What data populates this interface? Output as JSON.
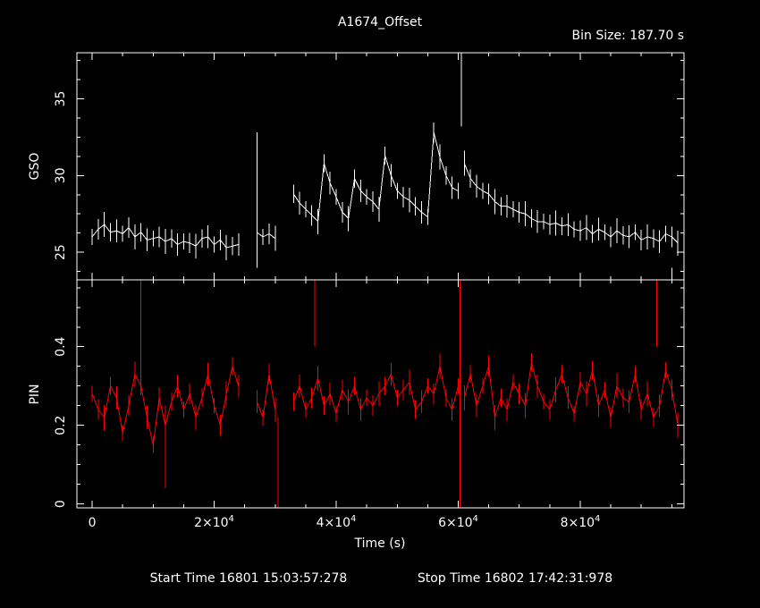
{
  "colors": {
    "background": "#000000",
    "foreground": "#ffffff",
    "gso": "#ffffff",
    "pin": "#ff0000"
  },
  "chart_data": [
    {
      "type": "line",
      "panel": "gso",
      "title": "A1674_Offset",
      "subtitle": "Bin Size:  187.70 s",
      "ylabel": "GSO",
      "xlim": [
        -2500,
        97000
      ],
      "ylim": [
        23.2,
        38
      ],
      "y_ticks": [
        25,
        30,
        35
      ],
      "x_ticks": [
        0,
        20000,
        40000,
        60000,
        80000
      ],
      "grid": false,
      "series": [
        {
          "style": "line-with-error-bars",
          "color": "#ffffff",
          "segments": [
            {
              "x": [
                0,
                1000,
                2000,
                3000,
                4000,
                5000,
                6000,
                7000,
                8000,
                9000,
                10000,
                11000,
                12000,
                13000,
                14000,
                15000,
                16000,
                17000,
                18000,
                19000,
                20000,
                21000,
                22000,
                23000,
                24000
              ],
              "y": [
                26,
                26.5,
                26.8,
                26.3,
                26.4,
                26.2,
                26.6,
                26.0,
                26.3,
                25.8,
                25.9,
                26.0,
                25.7,
                25.9,
                25.5,
                25.7,
                25.6,
                25.4,
                25.9,
                26.0,
                25.5,
                25.8,
                25.3,
                25.4,
                25.5
              ]
            },
            {
              "x": [
                27000,
                28000,
                29000,
                30000
              ],
              "y": [
                26.3,
                26.0,
                26.2,
                25.9
              ]
            },
            {
              "x": [
                33000,
                34000,
                35000,
                36000,
                37000,
                38000,
                39000,
                40000,
                41000,
                42000,
                43000,
                44000,
                45000,
                46000,
                47000,
                48000,
                49000,
                50000,
                51000,
                52000,
                53000,
                54000,
                55000,
                56000,
                57000,
                58000,
                59000,
                60000
              ],
              "y": [
                28.8,
                28.2,
                27.8,
                27.4,
                27.0,
                30.8,
                29.5,
                28.6,
                27.6,
                27.2,
                29.8,
                29.0,
                28.6,
                28.3,
                27.8,
                31.3,
                30.0,
                29.0,
                28.6,
                28.4,
                28.0,
                27.6,
                27.3,
                32.8,
                31.2,
                30.0,
                29.2,
                29.0
              ]
            },
            {
              "x": [
                61000,
                62000,
                63000,
                64000,
                65000,
                66000,
                67000,
                68000,
                69000,
                70000,
                71000,
                72000,
                73000,
                74000,
                75000,
                76000,
                77000,
                78000,
                79000,
                80000,
                81000,
                82000,
                83000,
                84000,
                85000,
                86000,
                87000,
                88000,
                89000,
                90000,
                91000,
                92000,
                93000,
                94000,
                95000,
                96000
              ],
              "y": [
                30.8,
                29.8,
                29.3,
                29.0,
                28.8,
                28.3,
                28.0,
                28.0,
                27.8,
                27.6,
                27.5,
                27.2,
                27.0,
                27.0,
                26.8,
                26.9,
                26.7,
                26.8,
                26.5,
                26.4,
                26.6,
                26.2,
                26.5,
                26.3,
                26.0,
                26.4,
                26.1,
                26.0,
                26.3,
                25.8,
                26.0,
                25.9,
                25.7,
                26.2,
                26.0,
                25.6
              ]
            }
          ],
          "spikes": [
            {
              "x": 27000,
              "ylo": 24.0,
              "yhi": 32.8
            },
            {
              "x": 60500,
              "ylo": 33.2,
              "yhi": 38.0
            },
            {
              "x": 95000,
              "ylo": 23.2,
              "yhi": 24.0
            }
          ]
        }
      ]
    },
    {
      "type": "line",
      "panel": "pin",
      "ylabel": "PIN",
      "xlabel": "Time (s)",
      "xlim": [
        -2500,
        97000
      ],
      "ylim": [
        -0.01,
        0.57
      ],
      "y_ticks": [
        0,
        0.2,
        0.4
      ],
      "y_tick_labels": [
        "0",
        "0.2",
        "0.4"
      ],
      "x_ticks": [
        0,
        20000,
        40000,
        60000,
        80000
      ],
      "x_tick_labels": [
        {
          "base": "0",
          "exp": ""
        },
        {
          "base": "2×10",
          "exp": "4"
        },
        {
          "base": "4×10",
          "exp": "4"
        },
        {
          "base": "6×10",
          "exp": "4"
        },
        {
          "base": "8×10",
          "exp": "4"
        }
      ],
      "grid": false,
      "series": [
        {
          "style": "line-with-error-bars",
          "color": "#ff0000",
          "segments": [
            {
              "x": [
                0,
                1000,
                2000,
                3000,
                4000,
                5000,
                6000,
                7000,
                8000,
                9000,
                10000,
                11000,
                12000,
                13000,
                14000,
                15000,
                16000,
                17000,
                18000,
                19000,
                20000,
                21000,
                22000,
                23000,
                24000
              ],
              "y": [
                0.28,
                0.24,
                0.22,
                0.3,
                0.27,
                0.18,
                0.25,
                0.33,
                0.3,
                0.22,
                0.15,
                0.27,
                0.2,
                0.26,
                0.3,
                0.24,
                0.28,
                0.22,
                0.27,
                0.33,
                0.25,
                0.2,
                0.28,
                0.35,
                0.3
              ]
            },
            {
              "x": [
                27000,
                28000,
                29000,
                30000
              ],
              "y": [
                0.26,
                0.22,
                0.33,
                0.24
              ]
            },
            {
              "x": [
                33000,
                34000,
                35000,
                36000,
                37000,
                38000,
                39000,
                40000,
                41000,
                42000,
                43000,
                44000,
                45000,
                46000,
                47000,
                48000,
                49000,
                50000,
                51000,
                52000,
                53000,
                54000,
                55000,
                56000,
                57000,
                58000,
                59000,
                60000
              ],
              "y": [
                0.26,
                0.3,
                0.24,
                0.27,
                0.32,
                0.25,
                0.28,
                0.23,
                0.29,
                0.26,
                0.3,
                0.24,
                0.27,
                0.25,
                0.28,
                0.3,
                0.33,
                0.27,
                0.29,
                0.31,
                0.24,
                0.26,
                0.3,
                0.28,
                0.35,
                0.27,
                0.24,
                0.3
              ]
            },
            {
              "x": [
                61000,
                62000,
                63000,
                64000,
                65000,
                66000,
                67000,
                68000,
                69000,
                70000,
                71000,
                72000,
                73000,
                74000,
                75000,
                76000,
                77000,
                78000,
                79000,
                80000,
                81000,
                82000,
                83000,
                84000,
                85000,
                86000,
                87000,
                88000,
                89000,
                90000,
                91000,
                92000,
                93000,
                94000,
                95000,
                96000
              ],
              "y": [
                0.27,
                0.33,
                0.25,
                0.3,
                0.35,
                0.22,
                0.27,
                0.24,
                0.31,
                0.28,
                0.25,
                0.36,
                0.3,
                0.26,
                0.24,
                0.29,
                0.33,
                0.27,
                0.23,
                0.31,
                0.28,
                0.34,
                0.25,
                0.29,
                0.22,
                0.3,
                0.27,
                0.26,
                0.33,
                0.24,
                0.28,
                0.22,
                0.25,
                0.34,
                0.29,
                0.2
              ]
            }
          ],
          "spikes": [
            {
              "x": 8000,
              "ylo": 0.3,
              "yhi": 0.57
            },
            {
              "x": 12000,
              "ylo": 0.04,
              "yhi": 0.25
            },
            {
              "x": 30500,
              "ylo": -0.01,
              "yhi": 0.22
            },
            {
              "x": 36500,
              "ylo": 0.4,
              "yhi": 0.57
            },
            {
              "x": 60300,
              "ylo": -0.01,
              "yhi": 0.57
            },
            {
              "x": 92500,
              "ylo": 0.4,
              "yhi": 0.57
            }
          ]
        }
      ]
    }
  ],
  "footer": {
    "start_time": "Start Time 16801 15:03:57:278",
    "stop_time": "Stop Time 16802 17:42:31:978"
  }
}
